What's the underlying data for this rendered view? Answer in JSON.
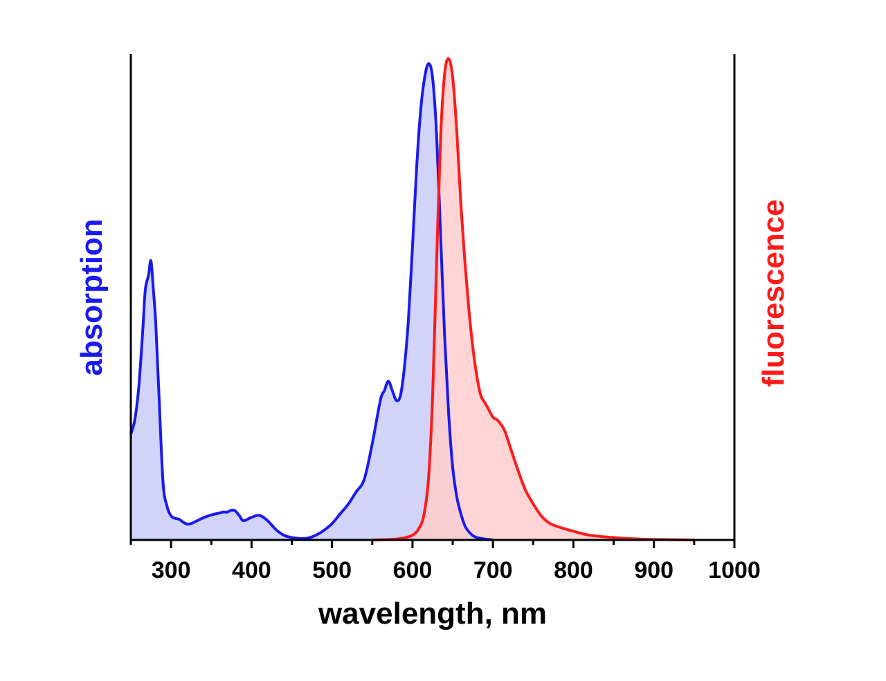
{
  "chart_data": {
    "type": "area",
    "title": "",
    "xlabel": "wavelength, nm",
    "ylabel_left": "absorption",
    "ylabel_right": "fluorescence",
    "xlim": [
      250,
      1000
    ],
    "ylim": [
      0,
      1.0
    ],
    "x_ticks": [
      300,
      400,
      500,
      600,
      700,
      800,
      900,
      1000
    ],
    "grid": false,
    "legend": "none",
    "series": [
      {
        "name": "absorption",
        "color": "#1a1aee",
        "fill": "#c9cbf7",
        "x": [
          250,
          255,
          260,
          265,
          268,
          272,
          275,
          278,
          281,
          285,
          290,
          295,
          300,
          305,
          310,
          315,
          320,
          325,
          330,
          340,
          350,
          360,
          365,
          370,
          375,
          380,
          385,
          390,
          400,
          410,
          420,
          430,
          440,
          450,
          460,
          470,
          480,
          490,
          500,
          510,
          520,
          530,
          540,
          550,
          560,
          565,
          570,
          575,
          580,
          585,
          590,
          595,
          600,
          605,
          610,
          615,
          620,
          625,
          630,
          635,
          640,
          645,
          650,
          655,
          660,
          665,
          670,
          675,
          680,
          690,
          700
        ],
        "y": [
          0.22,
          0.25,
          0.32,
          0.44,
          0.52,
          0.55,
          0.58,
          0.52,
          0.45,
          0.3,
          0.12,
          0.07,
          0.05,
          0.045,
          0.043,
          0.037,
          0.033,
          0.034,
          0.038,
          0.046,
          0.052,
          0.056,
          0.058,
          0.058,
          0.062,
          0.06,
          0.05,
          0.04,
          0.047,
          0.051,
          0.04,
          0.022,
          0.01,
          0.005,
          0.003,
          0.004,
          0.01,
          0.02,
          0.034,
          0.054,
          0.074,
          0.1,
          0.126,
          0.2,
          0.29,
          0.31,
          0.33,
          0.31,
          0.29,
          0.3,
          0.36,
          0.46,
          0.61,
          0.77,
          0.89,
          0.96,
          0.99,
          0.96,
          0.84,
          0.63,
          0.42,
          0.26,
          0.15,
          0.09,
          0.055,
          0.03,
          0.017,
          0.009,
          0.005,
          0.002,
          0.0
        ]
      },
      {
        "name": "fluorescence",
        "color": "#ff1a1a",
        "fill": "#ffcccc",
        "x": [
          550,
          580,
          600,
          610,
          615,
          620,
          625,
          630,
          635,
          640,
          645,
          650,
          655,
          660,
          665,
          670,
          675,
          680,
          685,
          690,
          695,
          700,
          705,
          710,
          715,
          720,
          730,
          740,
          750,
          760,
          770,
          780,
          800,
          820,
          850,
          880,
          900,
          950
        ],
        "y": [
          0.0,
          0.002,
          0.01,
          0.03,
          0.06,
          0.13,
          0.3,
          0.58,
          0.84,
          0.97,
          1.0,
          0.96,
          0.85,
          0.7,
          0.58,
          0.48,
          0.4,
          0.34,
          0.3,
          0.285,
          0.27,
          0.255,
          0.25,
          0.24,
          0.225,
          0.2,
          0.15,
          0.105,
          0.075,
          0.05,
          0.035,
          0.028,
          0.018,
          0.01,
          0.005,
          0.002,
          0.001,
          0.0
        ]
      }
    ]
  }
}
